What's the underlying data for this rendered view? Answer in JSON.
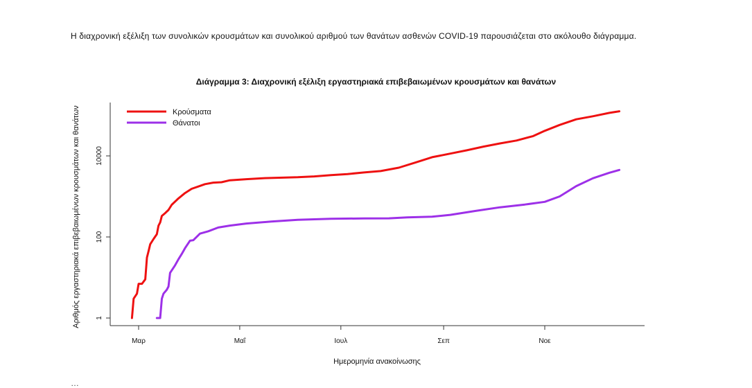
{
  "intro_text": "Η διαχρονική εξέλιξη των συνολικών κρουσμάτων και συνολικού αριθμού των θανάτων ασθενών COVID-19 παρουσιάζεται στο ακόλουθο διάγραμμα.",
  "chart_data": {
    "type": "line",
    "title": "Διάγραμμα 3: Διαχρονική εξέλιξη εργαστηριακά επιβεβαιωμένων κρουσμάτων και θανάτων",
    "xlabel": "Ημερομηνία ανακοίνωσης",
    "ylabel": "Αριθμός εργαστηριακά επιβεβαιωμένων κρουσμάτων και θανάτων",
    "y_scale": "log",
    "ylim": [
      0.5,
      130000
    ],
    "x_ticks": [
      "Μαρ",
      "Μαΐ",
      "Ιουλ",
      "Σεπ",
      "Νοε"
    ],
    "y_ticks": [
      {
        "value": 1,
        "label": "1"
      },
      {
        "value": 100,
        "label": "100"
      },
      {
        "value": 10000,
        "label": "10000"
      }
    ],
    "legend_position": "top-left",
    "series": [
      {
        "name": "Κρούσματα",
        "color": "#ee1111",
        "points": [
          [
            "2020-02-26",
            1
          ],
          [
            "2020-02-27",
            3
          ],
          [
            "2020-02-29",
            4
          ],
          [
            "2020-03-01",
            7
          ],
          [
            "2020-03-03",
            7
          ],
          [
            "2020-03-05",
            9
          ],
          [
            "2020-03-06",
            31
          ],
          [
            "2020-03-07",
            45
          ],
          [
            "2020-03-08",
            66
          ],
          [
            "2020-03-10",
            89
          ],
          [
            "2020-03-12",
            117
          ],
          [
            "2020-03-13",
            190
          ],
          [
            "2020-03-14",
            228
          ],
          [
            "2020-03-15",
            331
          ],
          [
            "2020-03-17",
            387
          ],
          [
            "2020-03-19",
            464
          ],
          [
            "2020-03-21",
            624
          ],
          [
            "2020-03-25",
            892
          ],
          [
            "2020-03-29",
            1212
          ],
          [
            "2020-04-02",
            1544
          ],
          [
            "2020-04-06",
            1755
          ],
          [
            "2020-04-10",
            2011
          ],
          [
            "2020-04-15",
            2192
          ],
          [
            "2020-04-20",
            2245
          ],
          [
            "2020-04-25",
            2506
          ],
          [
            "2020-05-05",
            2663
          ],
          [
            "2020-05-15",
            2819
          ],
          [
            "2020-05-25",
            2892
          ],
          [
            "2020-06-05",
            2980
          ],
          [
            "2020-06-15",
            3121
          ],
          [
            "2020-06-25",
            3343
          ],
          [
            "2020-07-05",
            3562
          ],
          [
            "2020-07-15",
            3910
          ],
          [
            "2020-07-25",
            4227
          ],
          [
            "2020-08-05",
            5123
          ],
          [
            "2020-08-15",
            6858
          ],
          [
            "2020-08-25",
            9280
          ],
          [
            "2020-09-05",
            11386
          ],
          [
            "2020-09-15",
            13730
          ],
          [
            "2020-09-25",
            16913
          ],
          [
            "2020-10-05",
            20290
          ],
          [
            "2020-10-15",
            24000
          ],
          [
            "2020-10-25",
            30782
          ],
          [
            "2020-11-01",
            41527
          ],
          [
            "2020-11-10",
            58000
          ],
          [
            "2020-11-20",
            80000
          ],
          [
            "2020-11-30",
            95000
          ],
          [
            "2020-12-10",
            115000
          ],
          [
            "2020-12-16",
            126372
          ]
        ]
      },
      {
        "name": "Θάνατοι",
        "color": "#9d30e8",
        "points": [
          [
            "2020-03-12",
            1
          ],
          [
            "2020-03-14",
            1
          ],
          [
            "2020-03-15",
            3
          ],
          [
            "2020-03-16",
            4
          ],
          [
            "2020-03-18",
            5
          ],
          [
            "2020-03-19",
            6
          ],
          [
            "2020-03-20",
            13
          ],
          [
            "2020-03-21",
            15
          ],
          [
            "2020-03-23",
            20
          ],
          [
            "2020-03-25",
            28
          ],
          [
            "2020-03-27",
            38
          ],
          [
            "2020-03-29",
            53
          ],
          [
            "2020-04-01",
            81
          ],
          [
            "2020-04-03",
            83
          ],
          [
            "2020-04-07",
            121
          ],
          [
            "2020-04-12",
            138
          ],
          [
            "2020-04-18",
            171
          ],
          [
            "2020-04-25",
            191
          ],
          [
            "2020-05-05",
            215
          ],
          [
            "2020-05-20",
            240
          ],
          [
            "2020-06-05",
            265
          ],
          [
            "2020-06-25",
            282
          ],
          [
            "2020-07-15",
            286
          ],
          [
            "2020-07-30",
            288
          ],
          [
            "2020-08-10",
            303
          ],
          [
            "2020-08-25",
            316
          ],
          [
            "2020-09-05",
            351
          ],
          [
            "2020-09-20",
            438
          ],
          [
            "2020-10-05",
            538
          ],
          [
            "2020-10-20",
            631
          ],
          [
            "2020-11-01",
            735
          ],
          [
            "2020-11-10",
            1000
          ],
          [
            "2020-11-20",
            1800
          ],
          [
            "2020-11-30",
            2800
          ],
          [
            "2020-12-10",
            3850
          ],
          [
            "2020-12-16",
            4500
          ]
        ]
      }
    ]
  },
  "bottom_text": "…"
}
